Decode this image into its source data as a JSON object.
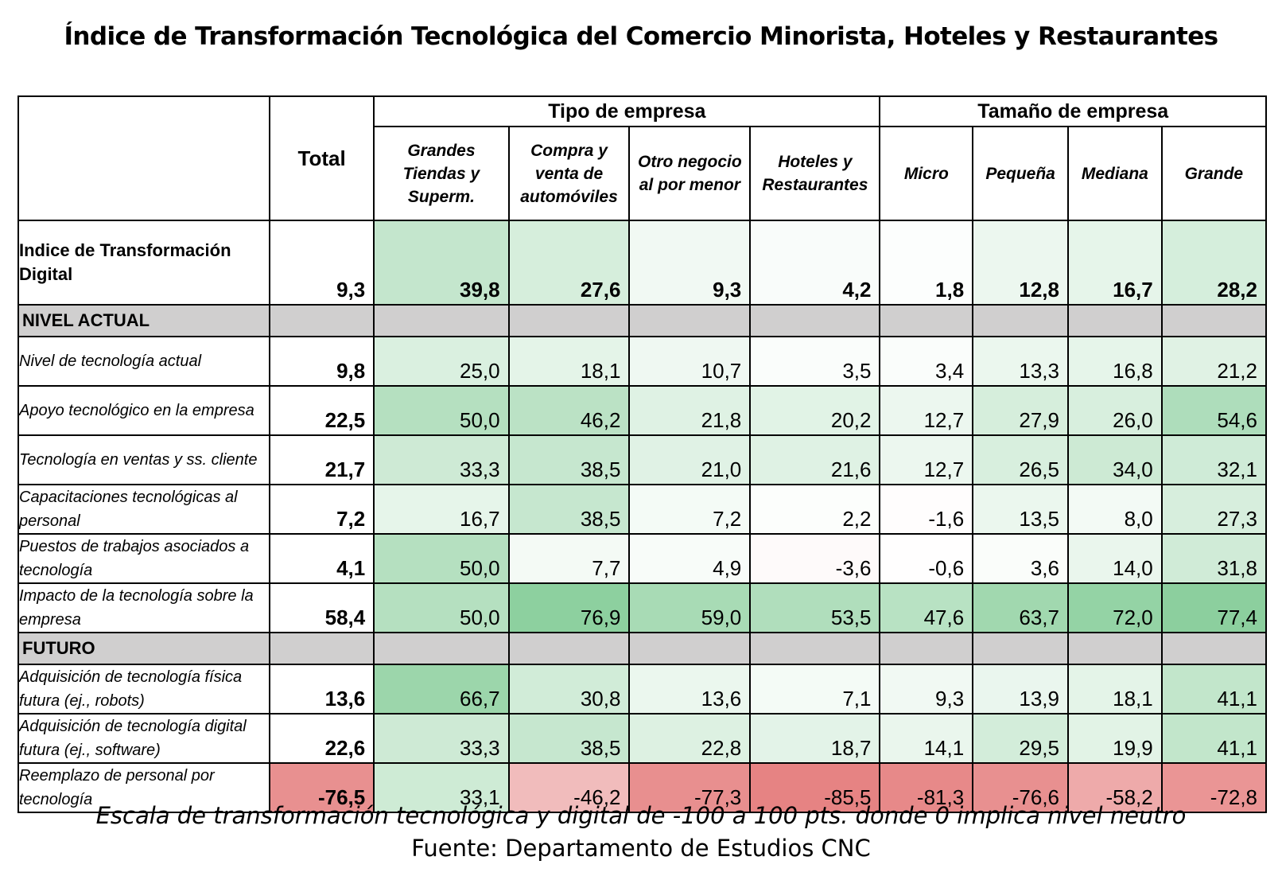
{
  "chart_data": {
    "type": "table",
    "title": "Índice de Transformación Tecnológica del Comercio Minorista, Hoteles y Restaurantes",
    "total_label": "Total",
    "groups": [
      {
        "name": "Tipo de empresa",
        "columns": [
          "Grandes Tiendas y Superm.",
          "Compra y venta de automóviles",
          "Otro negocio al por menor",
          "Hoteles y Restaurantes"
        ]
      },
      {
        "name": "Tamaño de empresa",
        "columns": [
          "Micro",
          "Pequeña",
          "Mediana",
          "Grande"
        ]
      }
    ],
    "index_row": {
      "label": "Indice de Transformación Digital",
      "values": [
        "9,3",
        "39,8",
        "27,6",
        "9,3",
        "4,2",
        "1,8",
        "12,8",
        "16,7",
        "28,2"
      ]
    },
    "sections": [
      {
        "name": "NIVEL ACTUAL",
        "rows": [
          {
            "label": "Nivel de tecnología actual",
            "values": [
              "9,8",
              "25,0",
              "18,1",
              "10,7",
              "3,5",
              "3,4",
              "13,3",
              "16,8",
              "21,2"
            ]
          },
          {
            "label": "Apoyo tecnológico en la empresa",
            "values": [
              "22,5",
              "50,0",
              "46,2",
              "21,8",
              "20,2",
              "12,7",
              "27,9",
              "26,0",
              "54,6"
            ]
          },
          {
            "label": "Tecnología en ventas y ss. cliente",
            "values": [
              "21,7",
              "33,3",
              "38,5",
              "21,0",
              "21,6",
              "12,7",
              "26,5",
              "34,0",
              "32,1"
            ]
          },
          {
            "label": "Capacitaciones tecnológicas al personal",
            "values": [
              "7,2",
              "16,7",
              "38,5",
              "7,2",
              "2,2",
              "-1,6",
              "13,5",
              "8,0",
              "27,3"
            ]
          },
          {
            "label": "Puestos de trabajos asociados a tecnología",
            "values": [
              "4,1",
              "50,0",
              "7,7",
              "4,9",
              "-3,6",
              "-0,6",
              "3,6",
              "14,0",
              "31,8"
            ]
          },
          {
            "label": "Impacto de la tecnología sobre la empresa",
            "values": [
              "58,4",
              "50,0",
              "76,9",
              "59,0",
              "53,5",
              "47,6",
              "63,7",
              "72,0",
              "77,4"
            ]
          }
        ]
      },
      {
        "name": "FUTURO",
        "rows": [
          {
            "label": "Adquisición de tecnología física futura (ej., robots)",
            "values": [
              "13,6",
              "66,7",
              "30,8",
              "13,6",
              "7,1",
              "9,3",
              "13,9",
              "18,1",
              "41,1"
            ]
          },
          {
            "label": "Adquisición de tecnología digital futura (ej., software)",
            "values": [
              "22,6",
              "33,3",
              "38,5",
              "22,8",
              "18,7",
              "14,1",
              "29,5",
              "19,9",
              "41,1"
            ]
          },
          {
            "label": "Reemplazo de personal por tecnología",
            "values": [
              "-76,5",
              "33,1",
              "-46,2",
              "-77,3",
              "-85,5",
              "-81,3",
              "-76,6",
              "-58,2",
              "-72,8"
            ]
          }
        ]
      }
    ],
    "scale_range": [
      -100,
      100
    ],
    "color_scale": {
      "positive": "#63be7b",
      "negative": "#e06666",
      "neutral": "#ffffff"
    },
    "note": "Escala de transformación tecnológica y digital de -100 a 100 pts. donde 0 implica nivel neutro",
    "source": "Fuente: Departamento de Estudios CNC"
  }
}
